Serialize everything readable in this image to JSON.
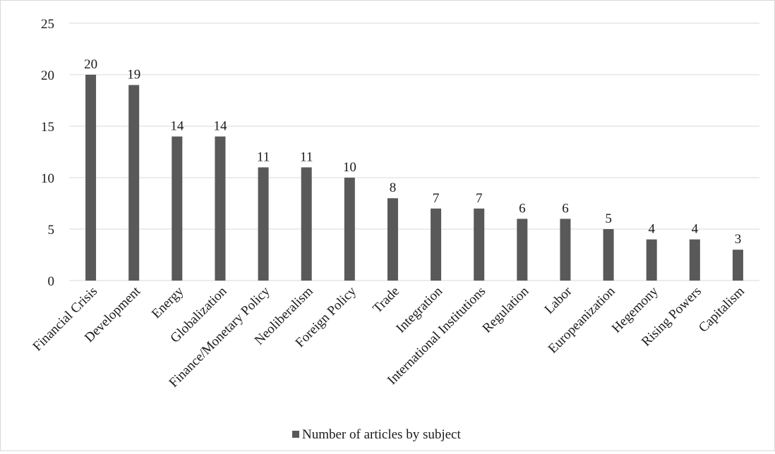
{
  "chart_data": {
    "type": "bar",
    "categories": [
      "Financial Crisis",
      "Development",
      "Energy",
      "Globalization",
      "Finance/Monetary Policy",
      "Neoliberalism",
      "Foreign Policy",
      "Trade",
      "Integration",
      "International Institutions",
      "Regulation",
      "Labor",
      "Europeanization",
      "Hegemony",
      "Rising Powers",
      "Capitalism"
    ],
    "series": [
      {
        "name": "Number of articles by subject",
        "values": [
          20,
          19,
          14,
          14,
          11,
          11,
          10,
          8,
          7,
          7,
          6,
          6,
          5,
          4,
          4,
          3
        ]
      }
    ],
    "yticks": [
      "0",
      "5",
      "10",
      "15",
      "20",
      "25"
    ],
    "ylim": [
      0,
      25
    ],
    "grid": true,
    "legend_position": "bottom",
    "data_labels": true,
    "bar_color": "#595959",
    "grid_color": "#d9d9d9"
  }
}
